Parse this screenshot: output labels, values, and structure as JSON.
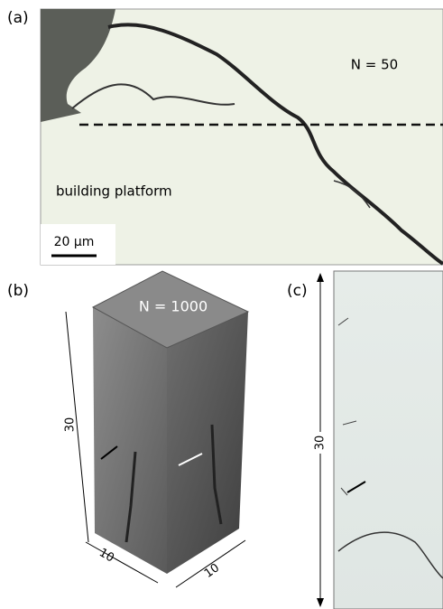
{
  "panel_a": {
    "label": "(a)",
    "annotation": "N = 50",
    "region_label": "building platform",
    "scale_bar": "20 µm"
  },
  "panel_b": {
    "label": "(b)",
    "annotation": "N = 1000",
    "height_label": "30",
    "width_label_left": "10",
    "width_label_right": "10"
  },
  "panel_c": {
    "label": "(c)",
    "height_label": "30"
  }
}
